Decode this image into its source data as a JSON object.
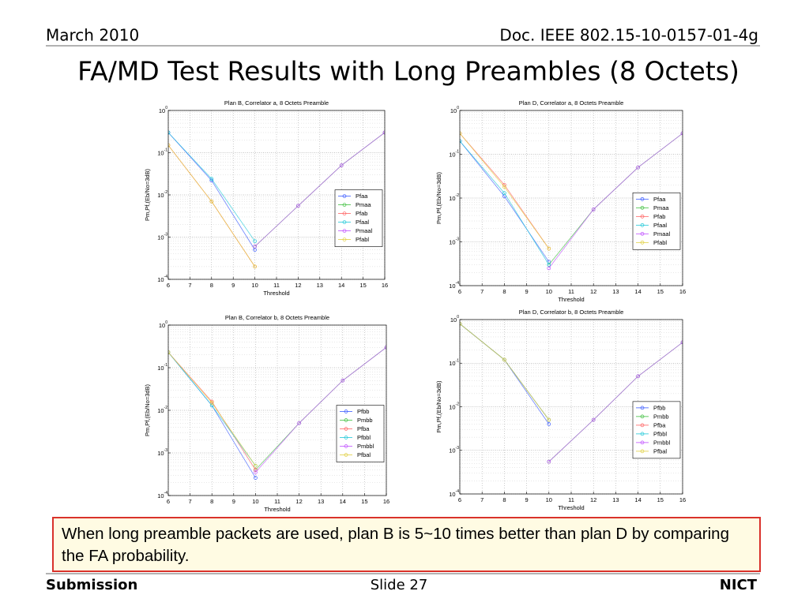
{
  "header": {
    "date": "March 2010",
    "doc": "Doc. IEEE 802.15-10-0157-01-4g",
    "title": "FA/MD Test Results with Long Preambles (8 Octets)"
  },
  "callout": "When long preamble packets are used, plan B is 5~10 times better than plan D by comparing the FA probability.",
  "footer": {
    "left": "Submission",
    "center": "Slide 27",
    "right": "NICT"
  },
  "chart_data": [
    {
      "type": "line",
      "title": "Plan B, Correlator a, 8 Octets Preamble",
      "xlabel": "Threshold",
      "ylabel": "Pm,Pf,(Eb/No=3dB)",
      "log_y": true,
      "grid": true,
      "legend": "center right",
      "xlim": [
        6,
        16
      ],
      "xticks": [
        6,
        7,
        8,
        9,
        10,
        11,
        12,
        13,
        14,
        15,
        16
      ],
      "ylim": [
        0.0001,
        1
      ],
      "yticks": [
        {
          "value": 1,
          "label": "10",
          "exponent": "0"
        },
        {
          "value": 0.1,
          "label": "10",
          "exponent": "-1"
        },
        {
          "value": 0.01,
          "label": "10",
          "exponent": "-2"
        },
        {
          "value": 0.001,
          "label": "10",
          "exponent": "-3"
        },
        {
          "value": 0.0001,
          "label": "10",
          "exponent": "-4"
        }
      ],
      "x": [
        6,
        8,
        10,
        12,
        14,
        16
      ],
      "series": [
        {
          "name": "Pfaa",
          "color": "#3b5bff",
          "values": [
            0.3,
            0.022,
            0.0005,
            null,
            null,
            null
          ]
        },
        {
          "name": "Pmaa",
          "color": "#3fbf3f",
          "values": [
            null,
            null,
            0.0006,
            0.0055,
            0.05,
            0.3
          ]
        },
        {
          "name": "Pfab",
          "color": "#ff6060",
          "values": [
            0.15,
            0.007,
            0.0002,
            null,
            null,
            null
          ]
        },
        {
          "name": "Pfaal",
          "color": "#20c8d8",
          "values": [
            0.3,
            0.024,
            0.0008,
            null,
            null,
            null
          ]
        },
        {
          "name": "Pmaal",
          "color": "#c050ff",
          "values": [
            null,
            null,
            0.0006,
            0.0055,
            0.05,
            0.3
          ]
        },
        {
          "name": "Pfabl",
          "color": "#e0d040",
          "values": [
            0.15,
            0.007,
            0.0002,
            null,
            null,
            null
          ]
        }
      ]
    },
    {
      "type": "line",
      "title": "Plan D, Correlator a, 8 Octets Preamble",
      "xlabel": "Threshold",
      "ylabel": "Pm,Pf,(Eb/No=3dB)",
      "log_y": true,
      "grid": true,
      "legend": "center right",
      "xlim": [
        6,
        16
      ],
      "xticks": [
        6,
        7,
        8,
        9,
        10,
        11,
        12,
        13,
        14,
        15,
        16
      ],
      "ylim": [
        0.0001,
        1
      ],
      "yticks": [
        {
          "value": 1,
          "label": "10",
          "exponent": "0"
        },
        {
          "value": 0.1,
          "label": "10",
          "exponent": "-1"
        },
        {
          "value": 0.01,
          "label": "10",
          "exponent": "-2"
        },
        {
          "value": 0.001,
          "label": "10",
          "exponent": "-3"
        },
        {
          "value": 0.0001,
          "label": "10",
          "exponent": "-4"
        }
      ],
      "x": [
        6,
        8,
        10,
        12,
        14,
        16
      ],
      "series": [
        {
          "name": "Pfaa",
          "color": "#3b5bff",
          "values": [
            0.2,
            0.011,
            0.00035,
            null,
            null,
            null
          ]
        },
        {
          "name": "Pmaa",
          "color": "#3fbf3f",
          "values": [
            null,
            null,
            0.0003,
            0.0055,
            0.05,
            0.3
          ]
        },
        {
          "name": "Pfab",
          "color": "#ff6060",
          "values": [
            0.3,
            0.02,
            0.0007,
            null,
            null,
            null
          ]
        },
        {
          "name": "Pfaal",
          "color": "#20c8d8",
          "values": [
            0.2,
            0.013,
            0.0003,
            null,
            null,
            null
          ]
        },
        {
          "name": "Pmaal",
          "color": "#c050ff",
          "values": [
            null,
            null,
            0.00025,
            0.0055,
            0.05,
            0.3
          ]
        },
        {
          "name": "Pfabl",
          "color": "#e0d040",
          "values": [
            0.3,
            0.018,
            0.0007,
            null,
            null,
            null
          ]
        }
      ]
    },
    {
      "type": "line",
      "title": "Plan B, Correlator b, 8 Octets Preamble",
      "xlabel": "Threshold",
      "ylabel": "Pm,Pf,(Eb/No=3dB)",
      "log_y": true,
      "grid": true,
      "legend": "center right",
      "xlim": [
        6,
        16
      ],
      "xticks": [
        6,
        7,
        8,
        9,
        10,
        11,
        12,
        13,
        14,
        15,
        16
      ],
      "ylim": [
        0.0001,
        1
      ],
      "yticks": [
        {
          "value": 1,
          "label": "10",
          "exponent": "0"
        },
        {
          "value": 0.1,
          "label": "10",
          "exponent": "-1"
        },
        {
          "value": 0.01,
          "label": "10",
          "exponent": "-2"
        },
        {
          "value": 0.001,
          "label": "10",
          "exponent": "-3"
        },
        {
          "value": 0.0001,
          "label": "10",
          "exponent": "-4"
        }
      ],
      "x": [
        6,
        8,
        10,
        12,
        14,
        16
      ],
      "series": [
        {
          "name": "Pfbb",
          "color": "#3b5bff",
          "values": [
            0.23,
            0.013,
            0.00026,
            null,
            null,
            null
          ]
        },
        {
          "name": "Pmbb",
          "color": "#3fbf3f",
          "values": [
            null,
            null,
            0.0004,
            0.005,
            0.05,
            0.3
          ]
        },
        {
          "name": "Pfba",
          "color": "#ff6060",
          "values": [
            0.23,
            0.016,
            0.0004,
            null,
            null,
            null
          ]
        },
        {
          "name": "Pfbbl",
          "color": "#20c8d8",
          "values": [
            0.23,
            0.013,
            0.0005,
            null,
            null,
            null
          ]
        },
        {
          "name": "Pmbbl",
          "color": "#c050ff",
          "values": [
            null,
            null,
            0.00035,
            0.005,
            0.05,
            0.3
          ]
        },
        {
          "name": "Pfbal",
          "color": "#e0d040",
          "values": [
            0.23,
            0.015,
            0.0005,
            null,
            null,
            null
          ]
        }
      ]
    },
    {
      "type": "line",
      "title": "Plan D, Correlator b, 8 Octets Preamble",
      "xlabel": "Threshold",
      "ylabel": "Pm,Pf,(Eb/No=3dB)",
      "log_y": true,
      "grid": true,
      "legend": "center right",
      "xlim": [
        6,
        16
      ],
      "xticks": [
        6,
        7,
        8,
        9,
        10,
        11,
        12,
        13,
        14,
        15,
        16
      ],
      "ylim": [
        0.0001,
        1
      ],
      "yticks": [
        {
          "value": 1,
          "label": "10",
          "exponent": "0"
        },
        {
          "value": 0.1,
          "label": "10",
          "exponent": "-1"
        },
        {
          "value": 0.01,
          "label": "10",
          "exponent": "-2"
        },
        {
          "value": 0.001,
          "label": "10",
          "exponent": "-3"
        },
        {
          "value": 0.0001,
          "label": "10",
          "exponent": "-4"
        }
      ],
      "x": [
        6,
        8,
        10,
        12,
        14,
        16
      ],
      "series": [
        {
          "name": "Pfbb",
          "color": "#3b5bff",
          "values": [
            0.8,
            0.12,
            0.004,
            null,
            null,
            null
          ]
        },
        {
          "name": "Pmbb",
          "color": "#3fbf3f",
          "values": [
            null,
            null,
            0.00055,
            0.005,
            0.05,
            0.3
          ]
        },
        {
          "name": "Pfba",
          "color": "#ff6060",
          "values": [
            0.8,
            0.12,
            0.005,
            null,
            null,
            null
          ]
        },
        {
          "name": "Pfbbl",
          "color": "#20c8d8",
          "values": [
            0.8,
            0.12,
            0.005,
            null,
            null,
            null
          ]
        },
        {
          "name": "Pmbbl",
          "color": "#c050ff",
          "values": [
            null,
            null,
            0.00055,
            0.005,
            0.05,
            0.3
          ]
        },
        {
          "name": "Pfbal",
          "color": "#e0d040",
          "values": [
            0.8,
            0.12,
            0.005,
            null,
            null,
            null
          ]
        }
      ]
    }
  ]
}
